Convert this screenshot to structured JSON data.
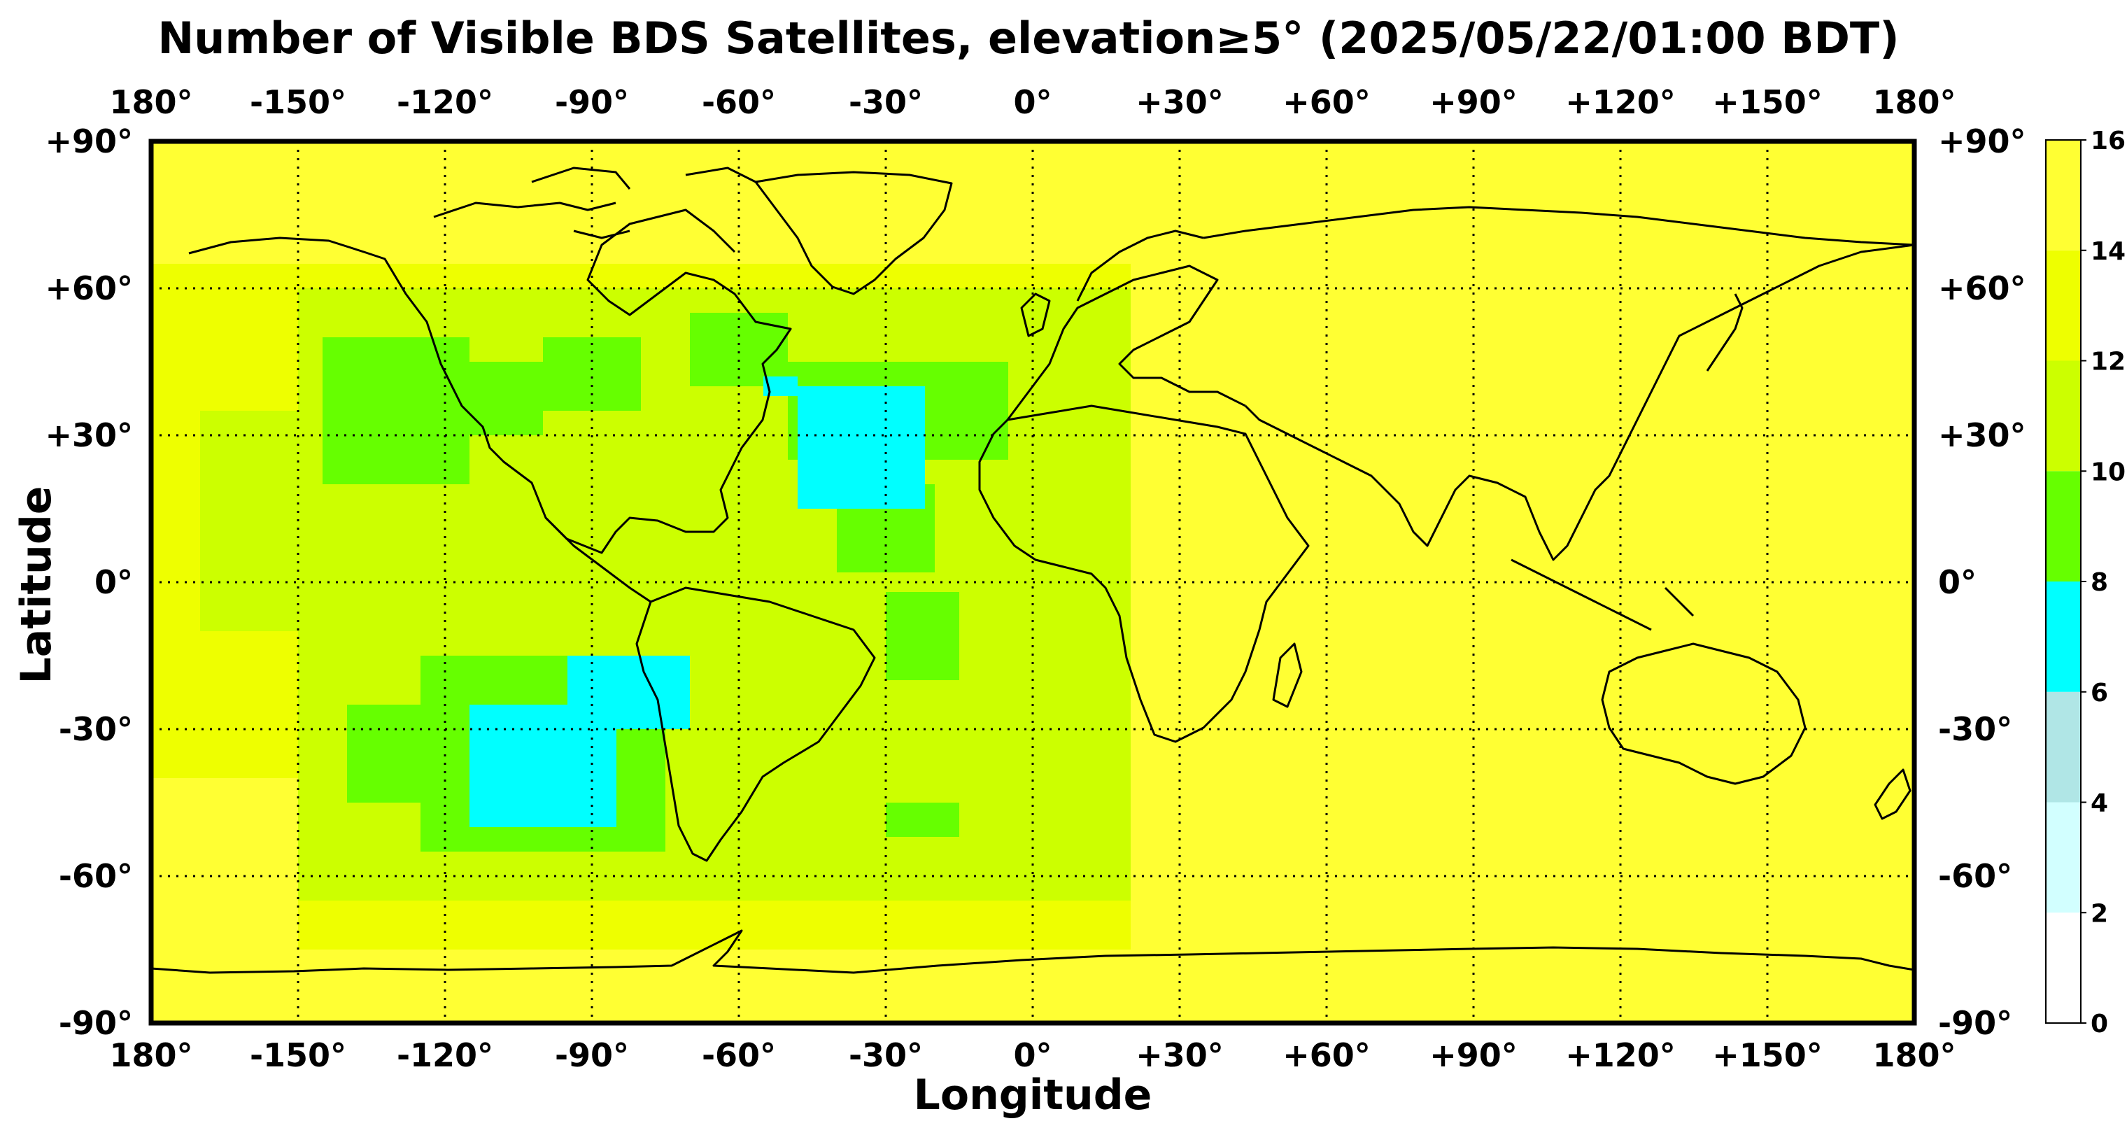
{
  "title": "Number of Visible BDS Satellites, elevation≥5° (2025/05/22/01:00 BDT)",
  "xlabel": "Longitude",
  "ylabel": "Latitude",
  "x_ticks": [
    "180°",
    "-150°",
    "-120°",
    "-90°",
    "-60°",
    "-30°",
    "0°",
    "+30°",
    "+60°",
    "+90°",
    "+120°",
    "+150°",
    "180°"
  ],
  "y_ticks": [
    "+90°",
    "+60°",
    "+30°",
    "0°",
    "-30°",
    "-60°",
    "-90°"
  ],
  "colorbar": {
    "ticks": [
      "0",
      "2",
      "4",
      "6",
      "8",
      "10",
      "12",
      "14",
      "16"
    ],
    "colors": [
      "#ffffff",
      "#d2ffff",
      "#b0e6e6",
      "#00ffff",
      "#66ff00",
      "#ccff00",
      "#eeff00",
      "#ffff33"
    ]
  },
  "chart_data": {
    "type": "heatmap",
    "title": "Number of Visible BDS Satellites, elevation≥5° (2025/05/22/01:00 BDT)",
    "xlabel": "Longitude",
    "ylabel": "Latitude",
    "xlim": [
      -180,
      180
    ],
    "ylim": [
      -90,
      90
    ],
    "grid": true,
    "value_range": [
      0,
      16
    ],
    "levels": [
      0,
      2,
      4,
      6,
      8,
      10,
      12,
      14,
      16
    ],
    "regions": [
      {
        "level": 13,
        "lon": [
          -180,
          180
        ],
        "lat": [
          -90,
          90
        ]
      },
      {
        "level": 15,
        "lon": [
          20,
          180
        ],
        "lat": [
          -90,
          90
        ]
      },
      {
        "level": 15,
        "lon": [
          -180,
          -150
        ],
        "lat": [
          -90,
          -40
        ]
      },
      {
        "level": 15,
        "lon": [
          -180,
          180
        ],
        "lat": [
          -90,
          -75
        ]
      },
      {
        "level": 14,
        "lon": [
          -180,
          20
        ],
        "lat": [
          65,
          90
        ]
      },
      {
        "level": 11,
        "lon": [
          -150,
          20
        ],
        "lat": [
          -65,
          60
        ]
      },
      {
        "level": 11,
        "lon": [
          -170,
          -150
        ],
        "lat": [
          -10,
          35
        ]
      },
      {
        "level": 9,
        "lon": [
          -145,
          -115
        ],
        "lat": [
          20,
          50
        ]
      },
      {
        "level": 9,
        "lon": [
          -130,
          -100
        ],
        "lat": [
          30,
          45
        ]
      },
      {
        "level": 9,
        "lon": [
          -100,
          -80
        ],
        "lat": [
          35,
          50
        ]
      },
      {
        "level": 9,
        "lon": [
          -70,
          -50
        ],
        "lat": [
          40,
          55
        ]
      },
      {
        "level": 9,
        "lon": [
          -50,
          -5
        ],
        "lat": [
          25,
          45
        ]
      },
      {
        "level": 9,
        "lon": [
          -40,
          -20
        ],
        "lat": [
          2,
          20
        ]
      },
      {
        "level": 9,
        "lon": [
          -125,
          -75
        ],
        "lat": [
          -55,
          -15
        ]
      },
      {
        "level": 9,
        "lon": [
          -140,
          -120
        ],
        "lat": [
          -45,
          -25
        ]
      },
      {
        "level": 9,
        "lon": [
          -30,
          -15
        ],
        "lat": [
          -20,
          -2
        ]
      },
      {
        "level": 9,
        "lon": [
          -30,
          -15
        ],
        "lat": [
          -52,
          -45
        ]
      },
      {
        "level": 7,
        "lon": [
          -48,
          -22
        ],
        "lat": [
          15,
          40
        ]
      },
      {
        "level": 7,
        "lon": [
          -55,
          -48
        ],
        "lat": [
          38,
          42
        ]
      },
      {
        "level": 7,
        "lon": [
          -115,
          -85
        ],
        "lat": [
          -50,
          -25
        ]
      },
      {
        "level": 7,
        "lon": [
          -95,
          -70
        ],
        "lat": [
          -30,
          -15
        ]
      }
    ]
  }
}
